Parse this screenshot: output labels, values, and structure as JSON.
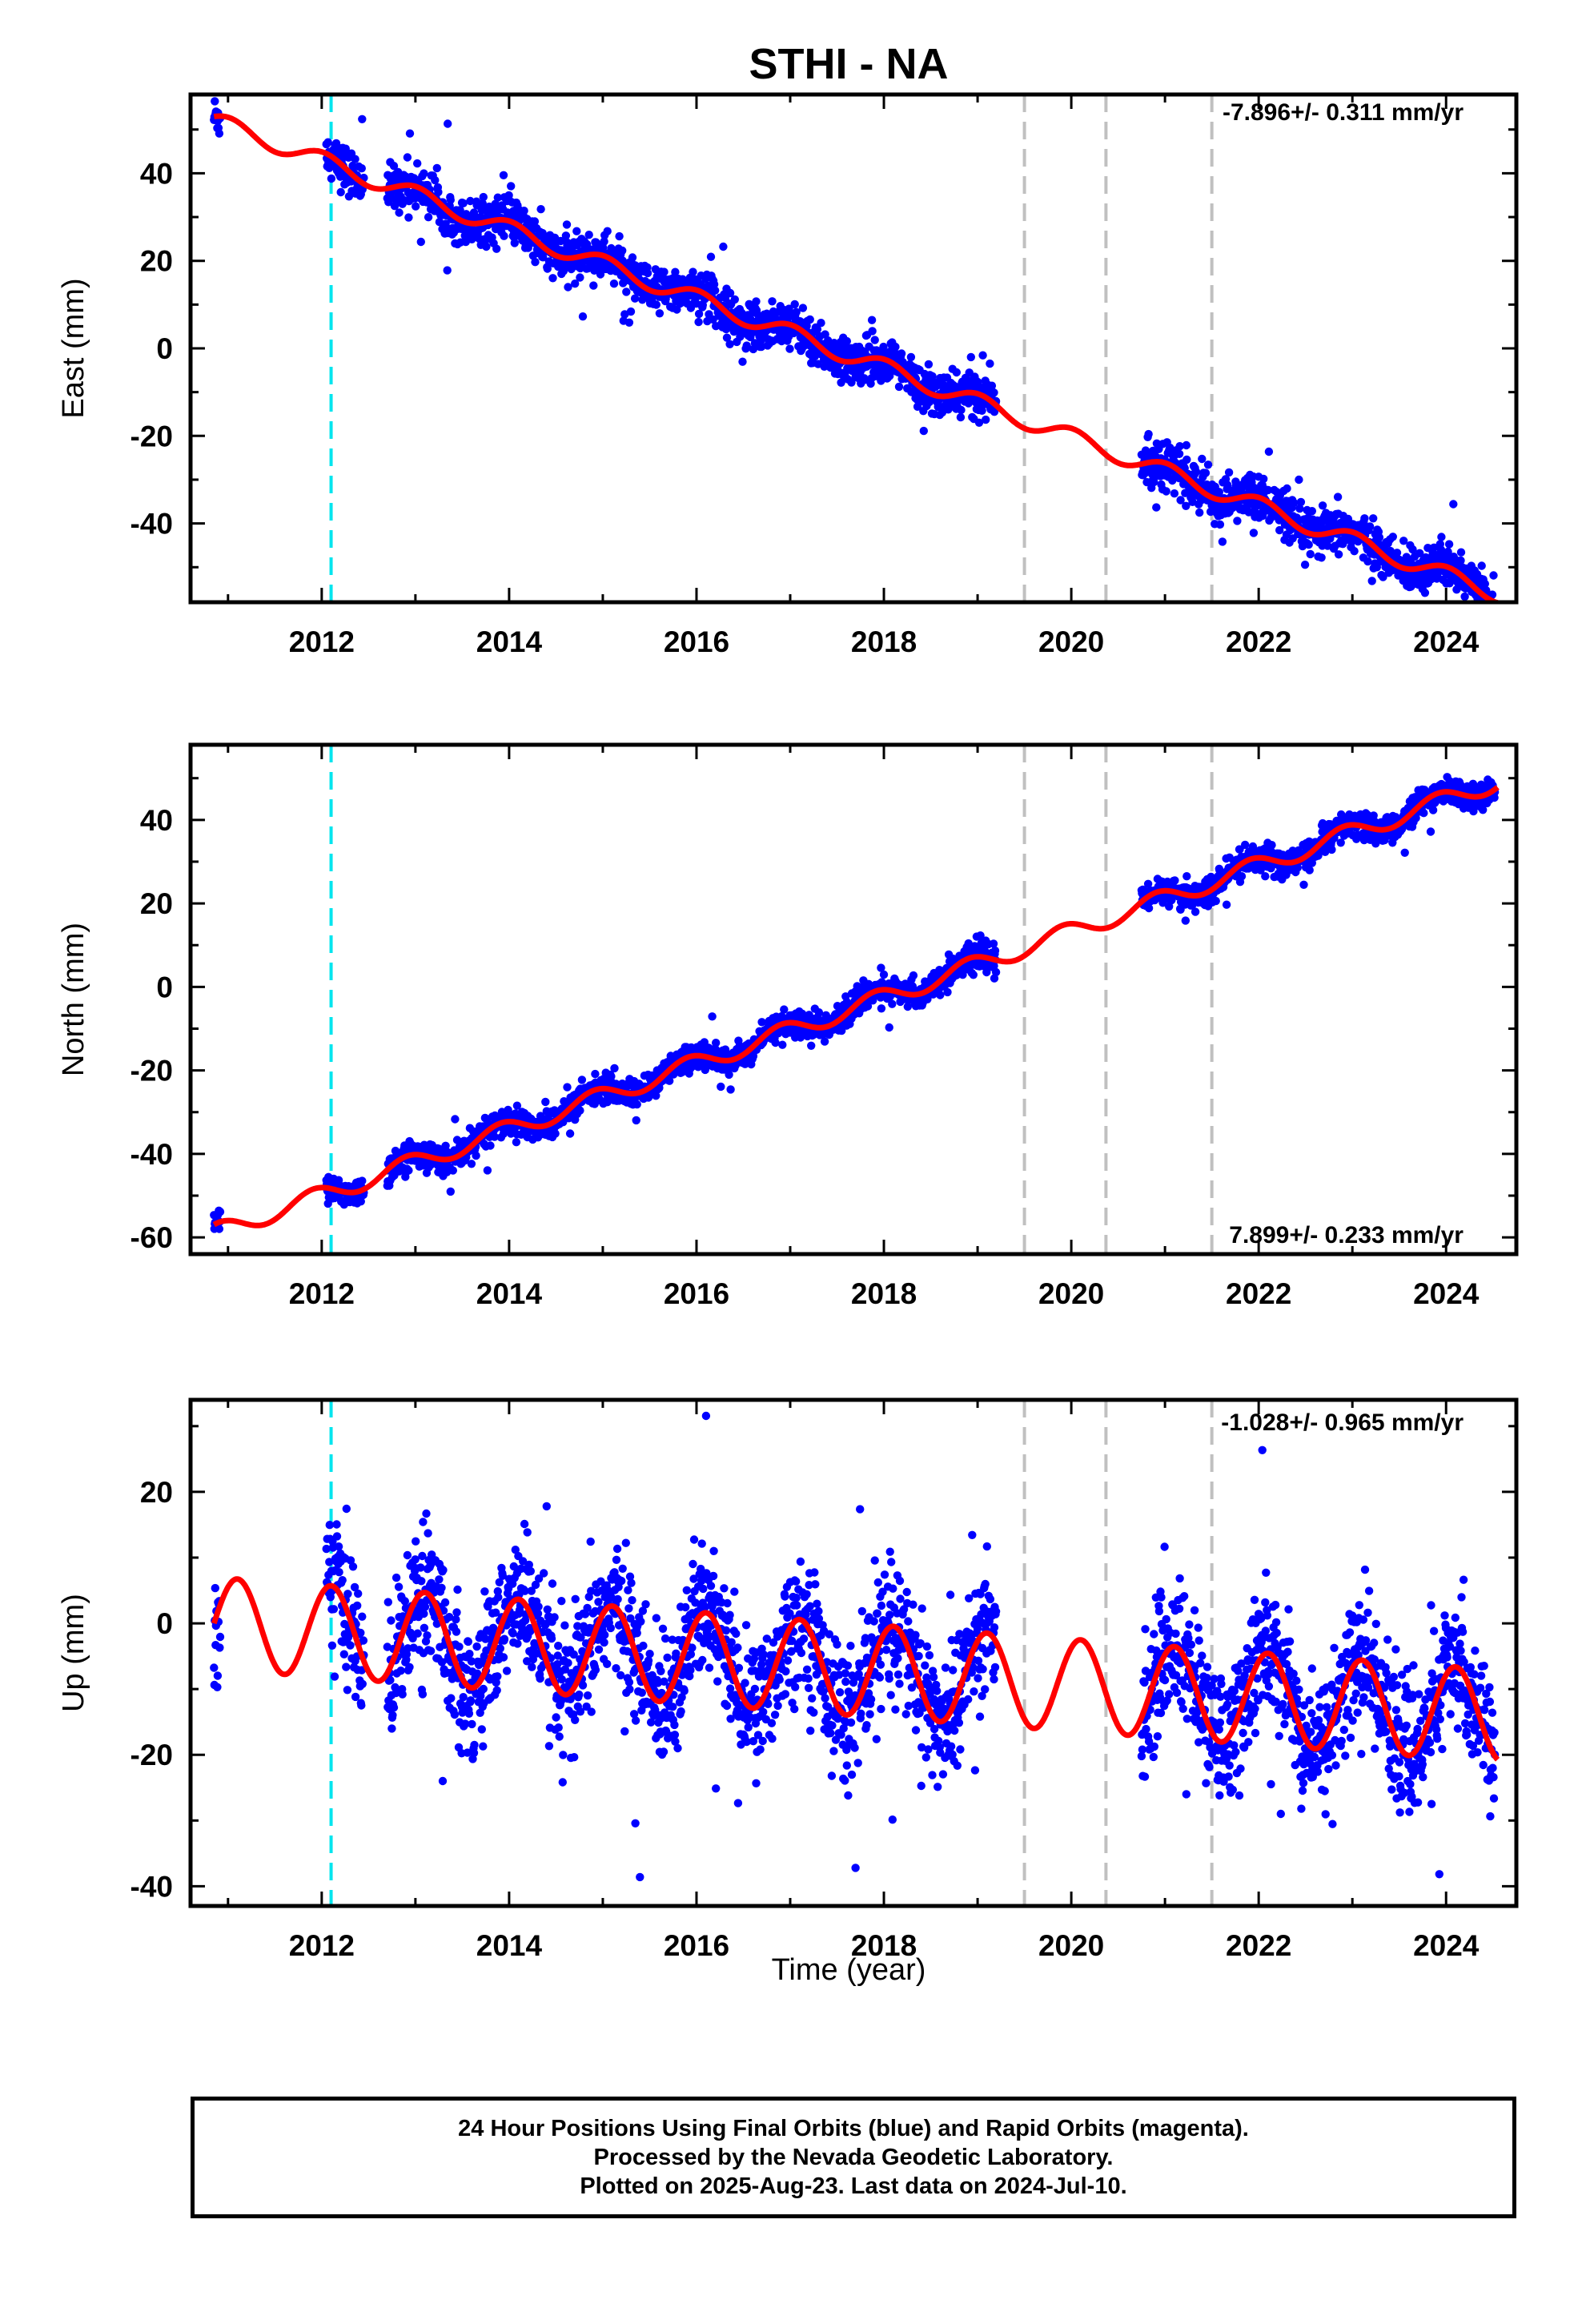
{
  "title": "STHI - NA",
  "xlabel": "Time (year)",
  "colors": {
    "points": "#0000ff",
    "model": "#ff0000",
    "equipment_line": "#00e5ee",
    "change_line": "#c0c0c0",
    "axes": "#000000"
  },
  "chart_data": [
    {
      "type": "scatter",
      "panel": "east",
      "ylabel": "East (mm)",
      "rate_label": "-7.896+/- 0.311 mm/yr",
      "xlim": [
        2010.6,
        2024.75
      ],
      "ylim": [
        -58,
        58
      ],
      "xticks": [
        2012,
        2014,
        2016,
        2018,
        2020,
        2022,
        2024
      ],
      "yticks": [
        -40,
        -20,
        0,
        20,
        40
      ],
      "vlines": [
        {
          "x": 2012.1,
          "style": "cyan-dashed"
        },
        {
          "x": 2019.5,
          "style": "gray-dashed"
        },
        {
          "x": 2020.37,
          "style": "gray-dashed"
        },
        {
          "x": 2021.5,
          "style": "gray-dashed"
        }
      ],
      "data_segments": [
        [
          2010.85,
          2010.92
        ],
        [
          2012.05,
          2012.45
        ],
        [
          2012.7,
          2019.2
        ],
        [
          2020.75,
          2024.52
        ]
      ],
      "model": {
        "t0": 2010.85,
        "y0": 52,
        "rate": -7.896,
        "amp": 2.0,
        "phase": 0.5
      },
      "noise": 2.5,
      "series": [
        {
          "name": "24 Hour Positions",
          "values": "daily points"
        }
      ]
    },
    {
      "type": "scatter",
      "panel": "north",
      "ylabel": "North (mm)",
      "rate_label": "7.899+/- 0.233 mm/yr",
      "xlim": [
        2010.6,
        2024.75
      ],
      "ylim": [
        -64,
        58
      ],
      "xticks": [
        2012,
        2014,
        2016,
        2018,
        2020,
        2022,
        2024
      ],
      "yticks": [
        -60,
        -40,
        -20,
        0,
        20,
        40
      ],
      "vlines": [
        {
          "x": 2012.1,
          "style": "cyan-dashed"
        },
        {
          "x": 2019.5,
          "style": "gray-dashed"
        },
        {
          "x": 2020.37,
          "style": "gray-dashed"
        },
        {
          "x": 2021.5,
          "style": "gray-dashed"
        }
      ],
      "data_segments": [
        [
          2010.85,
          2010.92
        ],
        [
          2012.05,
          2012.45
        ],
        [
          2012.7,
          2019.2
        ],
        [
          2020.75,
          2024.52
        ]
      ],
      "model": {
        "t0": 2010.85,
        "y0": -59,
        "rate": 7.899,
        "amp": 2.2,
        "phase": 1.2
      },
      "noise": 1.6
    },
    {
      "type": "scatter",
      "panel": "up",
      "ylabel": "Up (mm)",
      "rate_label": "-1.028+/- 0.965 mm/yr",
      "xlim": [
        2010.6,
        2024.75
      ],
      "ylim": [
        -43,
        34
      ],
      "xticks": [
        2012,
        2014,
        2016,
        2018,
        2020,
        2022,
        2024
      ],
      "yticks": [
        -40,
        -20,
        0,
        20
      ],
      "vlines": [
        {
          "x": 2012.1,
          "style": "cyan-dashed"
        },
        {
          "x": 2019.5,
          "style": "gray-dashed"
        },
        {
          "x": 2020.37,
          "style": "gray-dashed"
        },
        {
          "x": 2021.5,
          "style": "gray-dashed"
        }
      ],
      "data_segments": [
        [
          2010.85,
          2010.92
        ],
        [
          2012.05,
          2012.45
        ],
        [
          2012.7,
          2019.2
        ],
        [
          2020.75,
          2024.52
        ]
      ],
      "model": {
        "t0": 2010.85,
        "y0": 0,
        "rate": -1.028,
        "amp": 7.0,
        "phase": 0.0
      },
      "noise": 5.0
    }
  ],
  "footer": {
    "line1": "24 Hour Positions Using Final Orbits (blue) and Rapid Orbits (magenta).",
    "line2": "Processed by the Nevada Geodetic Laboratory.",
    "line3": "Plotted on 2025-Aug-23. Last data on 2024-Jul-10."
  }
}
